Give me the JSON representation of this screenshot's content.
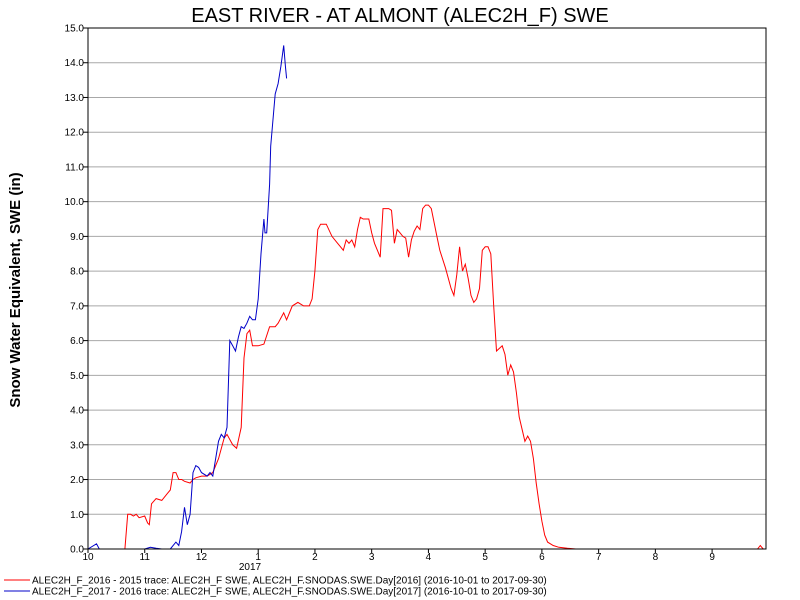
{
  "chart_data": {
    "type": "line",
    "title": "EAST RIVER - AT ALMONT (ALEC2H_F) SWE",
    "ylabel": "Snow Water Equivalent, SWE (in)",
    "xlabel": "",
    "year_label": "2017",
    "ylim": [
      0,
      15
    ],
    "xlim": [
      10,
      10.95
    ],
    "grid": "horizontal",
    "y_ticks": [
      "0.0",
      "1.0",
      "2.0",
      "3.0",
      "4.0",
      "5.0",
      "6.0",
      "7.0",
      "8.0",
      "9.0",
      "10.0",
      "11.0",
      "12.0",
      "13.0",
      "14.0",
      "15.0"
    ],
    "x_ticks": [
      {
        "label": "10",
        "x": 10
      },
      {
        "label": "11",
        "x": 11
      },
      {
        "label": "12",
        "x": 12
      },
      {
        "label": "1",
        "x": 13
      },
      {
        "label": "2",
        "x": 14
      },
      {
        "label": "3",
        "x": 15
      },
      {
        "label": "4",
        "x": 16
      },
      {
        "label": "5",
        "x": 17
      },
      {
        "label": "6",
        "x": 18
      },
      {
        "label": "7",
        "x": 19
      },
      {
        "label": "8",
        "x": 20
      },
      {
        "label": "9",
        "x": 21
      }
    ],
    "legend_position": "bottom-left",
    "series": [
      {
        "name": "ALEC2H_F_2016 - 2015 trace: ALEC2H_F SWE, ALEC2H_F.SNODAS.SWE.Day[2016] (2016-10-01 to 2017-09-30)",
        "color": "#ff0000",
        "points": [
          [
            10.0,
            0.0
          ],
          [
            10.65,
            0.0
          ],
          [
            10.7,
            1.0
          ],
          [
            10.75,
            1.0
          ],
          [
            10.8,
            0.95
          ],
          [
            10.85,
            1.0
          ],
          [
            10.9,
            0.9
          ],
          [
            11.0,
            0.95
          ],
          [
            11.05,
            0.75
          ],
          [
            11.08,
            0.7
          ],
          [
            11.12,
            1.3
          ],
          [
            11.2,
            1.45
          ],
          [
            11.3,
            1.4
          ],
          [
            11.4,
            1.6
          ],
          [
            11.45,
            1.7
          ],
          [
            11.5,
            2.2
          ],
          [
            11.55,
            2.2
          ],
          [
            11.6,
            2.0
          ],
          [
            11.65,
            2.0
          ],
          [
            11.7,
            1.95
          ],
          [
            11.8,
            1.9
          ],
          [
            11.85,
            2.0
          ],
          [
            11.9,
            2.05
          ],
          [
            12.0,
            2.1
          ],
          [
            12.1,
            2.1
          ],
          [
            12.2,
            2.2
          ],
          [
            12.3,
            2.6
          ],
          [
            12.4,
            3.2
          ],
          [
            12.45,
            3.3
          ],
          [
            12.55,
            3.0
          ],
          [
            12.62,
            2.9
          ],
          [
            12.7,
            3.5
          ],
          [
            12.75,
            5.5
          ],
          [
            12.8,
            6.2
          ],
          [
            12.85,
            6.3
          ],
          [
            12.9,
            5.85
          ],
          [
            13.0,
            5.85
          ],
          [
            13.1,
            5.9
          ],
          [
            13.2,
            6.4
          ],
          [
            13.3,
            6.4
          ],
          [
            13.35,
            6.5
          ],
          [
            13.45,
            6.8
          ],
          [
            13.5,
            6.6
          ],
          [
            13.6,
            7.0
          ],
          [
            13.7,
            7.1
          ],
          [
            13.8,
            7.0
          ],
          [
            13.9,
            7.0
          ],
          [
            13.95,
            7.2
          ],
          [
            14.0,
            8.0
          ],
          [
            14.05,
            9.2
          ],
          [
            14.1,
            9.35
          ],
          [
            14.2,
            9.35
          ],
          [
            14.3,
            9.0
          ],
          [
            14.4,
            8.8
          ],
          [
            14.45,
            8.7
          ],
          [
            14.5,
            8.6
          ],
          [
            14.55,
            8.9
          ],
          [
            14.6,
            8.8
          ],
          [
            14.65,
            8.9
          ],
          [
            14.7,
            8.7
          ],
          [
            14.75,
            9.2
          ],
          [
            14.8,
            9.55
          ],
          [
            14.85,
            9.5
          ],
          [
            14.95,
            9.5
          ],
          [
            15.0,
            9.1
          ],
          [
            15.05,
            8.8
          ],
          [
            15.1,
            8.6
          ],
          [
            15.15,
            8.4
          ],
          [
            15.2,
            9.8
          ],
          [
            15.3,
            9.8
          ],
          [
            15.35,
            9.75
          ],
          [
            15.4,
            8.8
          ],
          [
            15.45,
            9.2
          ],
          [
            15.5,
            9.1
          ],
          [
            15.55,
            9.0
          ],
          [
            15.6,
            8.95
          ],
          [
            15.65,
            8.4
          ],
          [
            15.7,
            8.9
          ],
          [
            15.75,
            9.15
          ],
          [
            15.8,
            9.3
          ],
          [
            15.85,
            9.2
          ],
          [
            15.9,
            9.8
          ],
          [
            15.95,
            9.9
          ],
          [
            16.0,
            9.9
          ],
          [
            16.05,
            9.8
          ],
          [
            16.1,
            9.4
          ],
          [
            16.15,
            9.0
          ],
          [
            16.2,
            8.6
          ],
          [
            16.3,
            8.1
          ],
          [
            16.4,
            7.5
          ],
          [
            16.45,
            7.3
          ],
          [
            16.5,
            7.9
          ],
          [
            16.55,
            8.7
          ],
          [
            16.6,
            8.0
          ],
          [
            16.65,
            8.2
          ],
          [
            16.7,
            7.8
          ],
          [
            16.75,
            7.3
          ],
          [
            16.8,
            7.1
          ],
          [
            16.85,
            7.2
          ],
          [
            16.9,
            7.5
          ],
          [
            16.95,
            8.6
          ],
          [
            17.0,
            8.7
          ],
          [
            17.05,
            8.7
          ],
          [
            17.1,
            8.5
          ],
          [
            17.15,
            7.0
          ],
          [
            17.2,
            5.7
          ],
          [
            17.3,
            5.85
          ],
          [
            17.35,
            5.6
          ],
          [
            17.4,
            5.0
          ],
          [
            17.45,
            5.3
          ],
          [
            17.5,
            5.1
          ],
          [
            17.55,
            4.5
          ],
          [
            17.6,
            3.8
          ],
          [
            17.7,
            3.1
          ],
          [
            17.75,
            3.25
          ],
          [
            17.8,
            3.1
          ],
          [
            17.85,
            2.6
          ],
          [
            17.9,
            1.9
          ],
          [
            17.95,
            1.3
          ],
          [
            18.0,
            0.8
          ],
          [
            18.05,
            0.4
          ],
          [
            18.1,
            0.2
          ],
          [
            18.2,
            0.1
          ],
          [
            18.3,
            0.05
          ],
          [
            18.45,
            0.02
          ],
          [
            18.6,
            0.0
          ],
          [
            21.8,
            0.0
          ],
          [
            21.85,
            0.1
          ],
          [
            21.9,
            0.0
          ],
          [
            21.95,
            0.0
          ]
        ]
      },
      {
        "name": "ALEC2H_F_2017 - 2016 trace: ALEC2H_F SWE, ALEC2H_F.SNODAS.SWE.Day[2017] (2016-10-01 to 2017-09-30)",
        "color": "#0000c8",
        "points": [
          [
            10.0,
            0.0
          ],
          [
            10.15,
            0.15
          ],
          [
            10.2,
            0.0
          ],
          [
            11.0,
            0.0
          ],
          [
            11.1,
            0.05
          ],
          [
            11.2,
            0.02
          ],
          [
            11.3,
            0.0
          ],
          [
            11.45,
            0.0
          ],
          [
            11.55,
            0.2
          ],
          [
            11.6,
            0.1
          ],
          [
            11.65,
            0.5
          ],
          [
            11.7,
            1.2
          ],
          [
            11.75,
            0.7
          ],
          [
            11.8,
            1.0
          ],
          [
            11.85,
            2.2
          ],
          [
            11.9,
            2.4
          ],
          [
            11.95,
            2.35
          ],
          [
            12.0,
            2.2
          ],
          [
            12.1,
            2.1
          ],
          [
            12.15,
            2.2
          ],
          [
            12.2,
            2.1
          ],
          [
            12.3,
            3.1
          ],
          [
            12.35,
            3.3
          ],
          [
            12.4,
            3.2
          ],
          [
            12.45,
            3.5
          ],
          [
            12.5,
            6.0
          ],
          [
            12.55,
            5.85
          ],
          [
            12.6,
            5.7
          ],
          [
            12.65,
            6.1
          ],
          [
            12.7,
            6.4
          ],
          [
            12.75,
            6.35
          ],
          [
            12.8,
            6.5
          ],
          [
            12.85,
            6.7
          ],
          [
            12.9,
            6.6
          ],
          [
            12.95,
            6.6
          ],
          [
            13.0,
            7.2
          ],
          [
            13.05,
            8.5
          ],
          [
            13.1,
            9.5
          ],
          [
            13.12,
            9.1
          ],
          [
            13.15,
            9.1
          ],
          [
            13.2,
            10.5
          ],
          [
            13.22,
            11.6
          ],
          [
            13.3,
            13.1
          ],
          [
            13.35,
            13.4
          ],
          [
            13.4,
            13.9
          ],
          [
            13.45,
            14.5
          ],
          [
            13.48,
            13.9
          ],
          [
            13.5,
            13.55
          ]
        ]
      }
    ]
  }
}
